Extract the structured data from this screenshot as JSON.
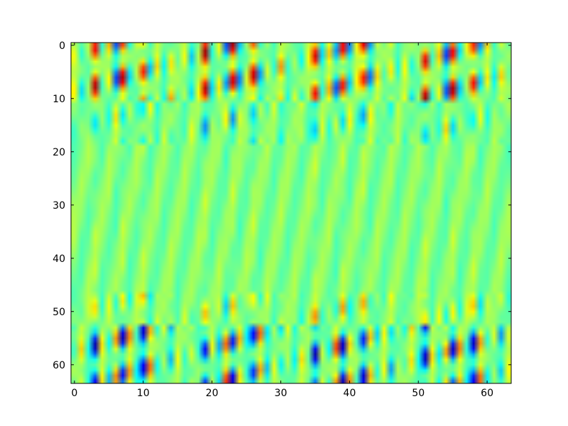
{
  "chart_data": {
    "type": "heatmap",
    "title": "",
    "xlabel": "",
    "ylabel": "",
    "colormap": "jet",
    "interpolation": "bilinear",
    "shape": [
      64,
      64
    ],
    "xlim": [
      -0.5,
      63.5
    ],
    "ylim": [
      63.5,
      -0.5
    ],
    "y_axis_inverted": true,
    "grid": false,
    "x_ticks": [
      0,
      10,
      20,
      30,
      40,
      50,
      60
    ],
    "y_ticks": [
      0,
      10,
      20,
      30,
      40,
      50,
      60
    ],
    "x_tick_labels": [
      "0",
      "10",
      "20",
      "30",
      "40",
      "50",
      "60"
    ],
    "y_tick_labels": [
      "0",
      "10",
      "20",
      "30",
      "40",
      "50",
      "60"
    ],
    "color_range": [
      0,
      1
    ],
    "baseline_value": 0.5,
    "pattern": {
      "column_period": 16,
      "column_amplitudes": [
        0.2,
        -0.3,
        0.15,
        0.95,
        -0.25,
        0.35,
        -0.6,
        0.9,
        -0.45,
        0.2,
        0.85,
        -0.5,
        0.3,
        -0.2,
        0.4,
        -0.15
      ],
      "row_band_strength": [
        {
          "rows": [
            0,
            10
          ],
          "strength": 1.0,
          "sign": 1
        },
        {
          "rows": [
            11,
            18
          ],
          "strength": 0.45,
          "sign": -1
        },
        {
          "rows": [
            19,
            46
          ],
          "strength": 0.08,
          "sign": 1
        },
        {
          "rows": [
            47,
            52
          ],
          "strength": 0.45,
          "sign": 1
        },
        {
          "rows": [
            53,
            63
          ],
          "strength": 1.0,
          "sign": -1
        }
      ]
    }
  }
}
